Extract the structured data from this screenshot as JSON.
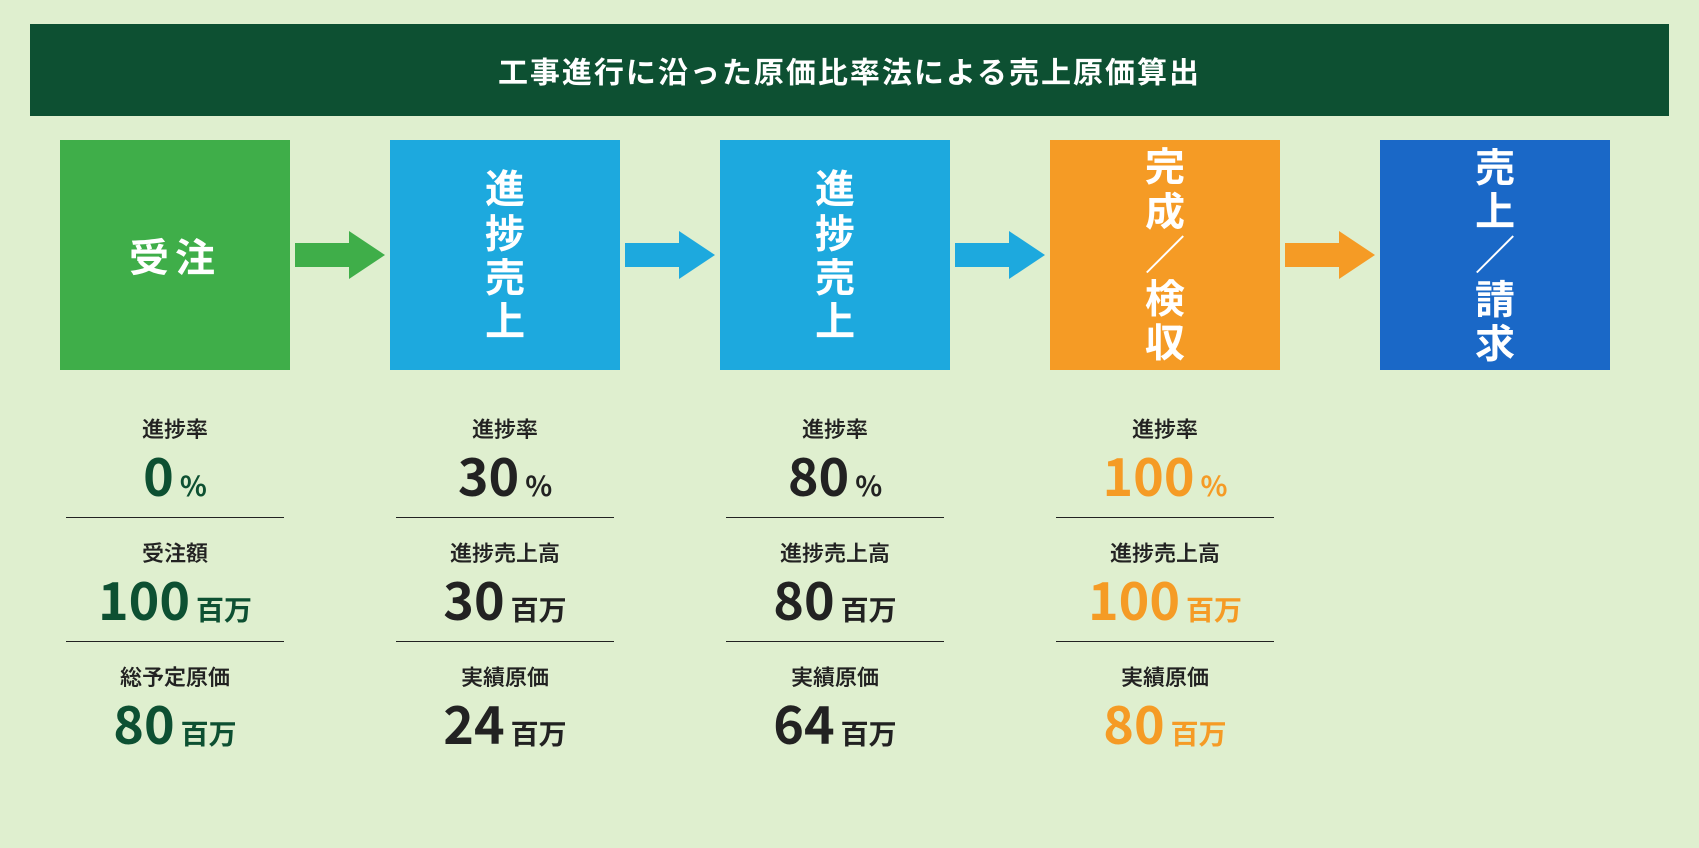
{
  "title": "工事進行に沿った原価比率法による売上原価算出",
  "colors": {
    "background": "#dfefcf",
    "title_bg": "#0d5032",
    "title_text": "#ffffff",
    "text_dark": "#222222",
    "green": "#3fae49",
    "blue_light": "#1da9de",
    "orange": "#f59b25",
    "blue_dark": "#1a68c7"
  },
  "stages": [
    {
      "id": "order",
      "label": "受注",
      "vertical": false,
      "box_color": "#3fae49",
      "arrow_color": "#3fae49",
      "value_color": "#0d5032",
      "metrics": [
        {
          "label": "進捗率",
          "num": "0",
          "unit": "%"
        },
        {
          "label": "受注額",
          "num": "100",
          "unit": "百万"
        },
        {
          "label": "総予定原価",
          "num": "80",
          "unit": "百万"
        }
      ]
    },
    {
      "id": "progress-30",
      "label": "進捗売上",
      "vertical": true,
      "box_color": "#1da9de",
      "arrow_color": "#1da9de",
      "value_color": "#222222",
      "metrics": [
        {
          "label": "進捗率",
          "num": "30",
          "unit": "%"
        },
        {
          "label": "進捗売上高",
          "num": "30",
          "unit": "百万"
        },
        {
          "label": "実績原価",
          "num": "24",
          "unit": "百万"
        }
      ]
    },
    {
      "id": "progress-80",
      "label": "進捗売上",
      "vertical": true,
      "box_color": "#1da9de",
      "arrow_color": "#1da9de",
      "value_color": "#222222",
      "metrics": [
        {
          "label": "進捗率",
          "num": "80",
          "unit": "%"
        },
        {
          "label": "進捗売上高",
          "num": "80",
          "unit": "百万"
        },
        {
          "label": "実績原価",
          "num": "64",
          "unit": "百万"
        }
      ]
    },
    {
      "id": "complete",
      "label": "完成／検収",
      "vertical": true,
      "box_color": "#f59b25",
      "arrow_color": "#f59b25",
      "value_color": "#f59b25",
      "metrics": [
        {
          "label": "進捗率",
          "num": "100",
          "unit": "%"
        },
        {
          "label": "進捗売上高",
          "num": "100",
          "unit": "百万"
        },
        {
          "label": "実績原価",
          "num": "80",
          "unit": "百万"
        }
      ]
    },
    {
      "id": "billing",
      "label": "売上／請求",
      "vertical": true,
      "box_color": "#1a68c7",
      "arrow_color": null,
      "value_color": "#222222",
      "metrics": []
    }
  ]
}
